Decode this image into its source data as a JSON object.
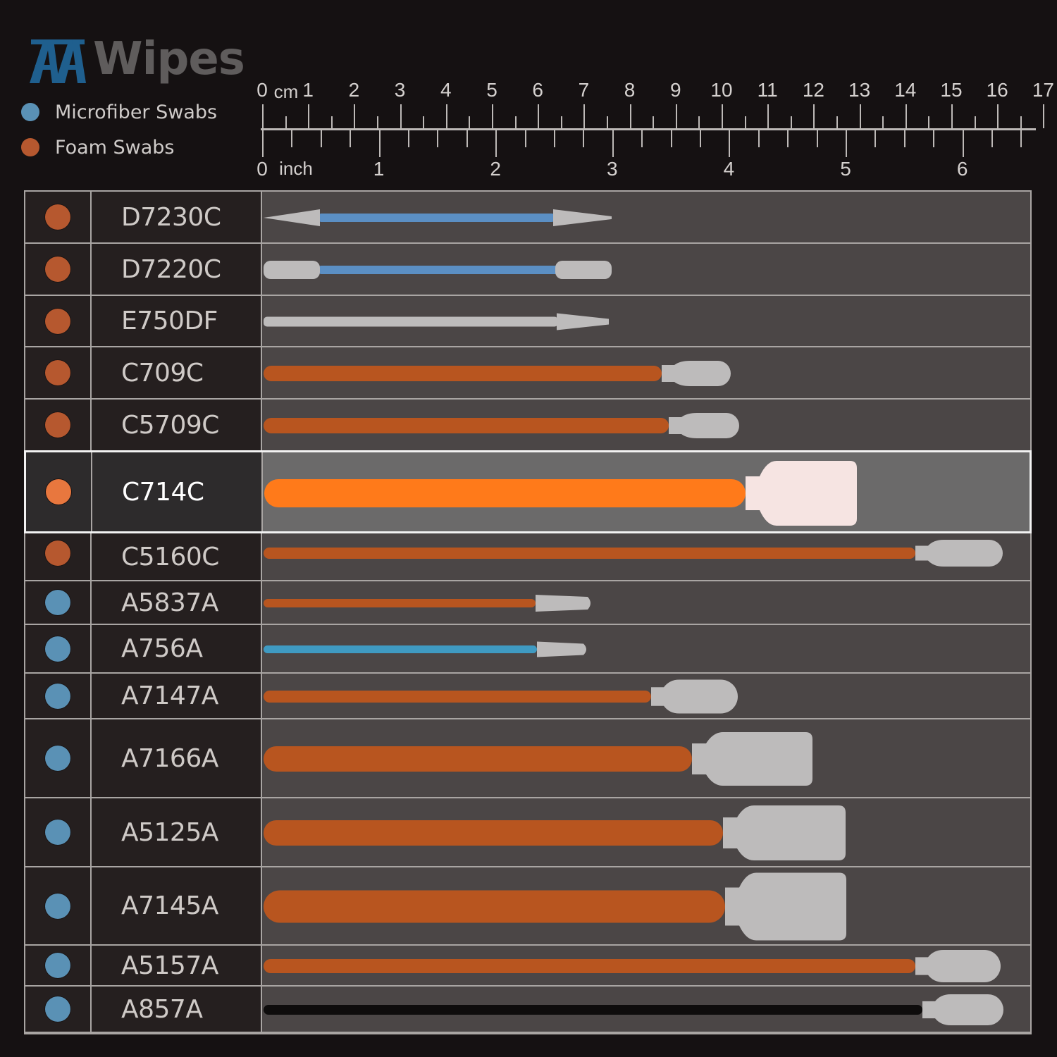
{
  "brand": {
    "prefix": "AA",
    "name": "Wipes",
    "prefix_color": "#1f5f8e",
    "name_color": "#5f5c5c"
  },
  "legend": {
    "items": [
      {
        "label": "Microfiber Swabs",
        "color": "#5a91b5"
      },
      {
        "label": "Foam Swabs",
        "color": "#b6582f"
      }
    ]
  },
  "ruler": {
    "cm_unit": "cm",
    "inch_unit": "inch",
    "cm_labels": [
      "0",
      "1",
      "2",
      "3",
      "4",
      "5",
      "6",
      "7",
      "8",
      "9",
      "10",
      "11",
      "12",
      "13",
      "14",
      "15",
      "16",
      "17"
    ],
    "inch_labels": [
      "0",
      "1",
      "2",
      "3",
      "4",
      "5",
      "6"
    ]
  },
  "table": {
    "rows": [
      {
        "code": "D7230C",
        "type": "Foam Swabs",
        "highlighted": false
      },
      {
        "code": "D7220C",
        "type": "Foam Swabs",
        "highlighted": false
      },
      {
        "code": "E750DF",
        "type": "Foam Swabs",
        "highlighted": false
      },
      {
        "code": "C709C",
        "type": "Foam Swabs",
        "highlighted": false
      },
      {
        "code": "C5709C",
        "type": "Foam Swabs",
        "highlighted": false
      },
      {
        "code": "C714C",
        "type": "Foam Swabs",
        "highlighted": true
      },
      {
        "code": "C5160C",
        "type": "Foam Swabs",
        "highlighted": false
      },
      {
        "code": "A5837A",
        "type": "Microfiber Swabs",
        "highlighted": false
      },
      {
        "code": "A756A",
        "type": "Microfiber Swabs",
        "highlighted": false
      },
      {
        "code": "A7147A",
        "type": "Microfiber Swabs",
        "highlighted": false
      },
      {
        "code": "A7166A",
        "type": "Microfiber Swabs",
        "highlighted": false
      },
      {
        "code": "A5125A",
        "type": "Microfiber Swabs",
        "highlighted": false
      },
      {
        "code": "A7145A",
        "type": "Microfiber Swabs",
        "highlighted": false
      },
      {
        "code": "A5157A",
        "type": "Microfiber Swabs",
        "highlighted": false
      },
      {
        "code": "A857A",
        "type": "Microfiber Swabs",
        "highlighted": false
      }
    ]
  },
  "colors": {
    "foam_dot": "#b6582f",
    "foam_dot_highlight": "#e8773e",
    "microfiber_dot": "#5a91b5",
    "handle_orange": "#b8551f",
    "handle_orange_bright": "#ff7a1a",
    "handle_blue": "#5b8fc4",
    "handle_cyan": "#3f9ac2",
    "handle_grey": "#bdbbbb",
    "handle_black": "#0e0c0c",
    "tip": "#bdbbbb",
    "tip_highlight": "#f6e4e2"
  }
}
